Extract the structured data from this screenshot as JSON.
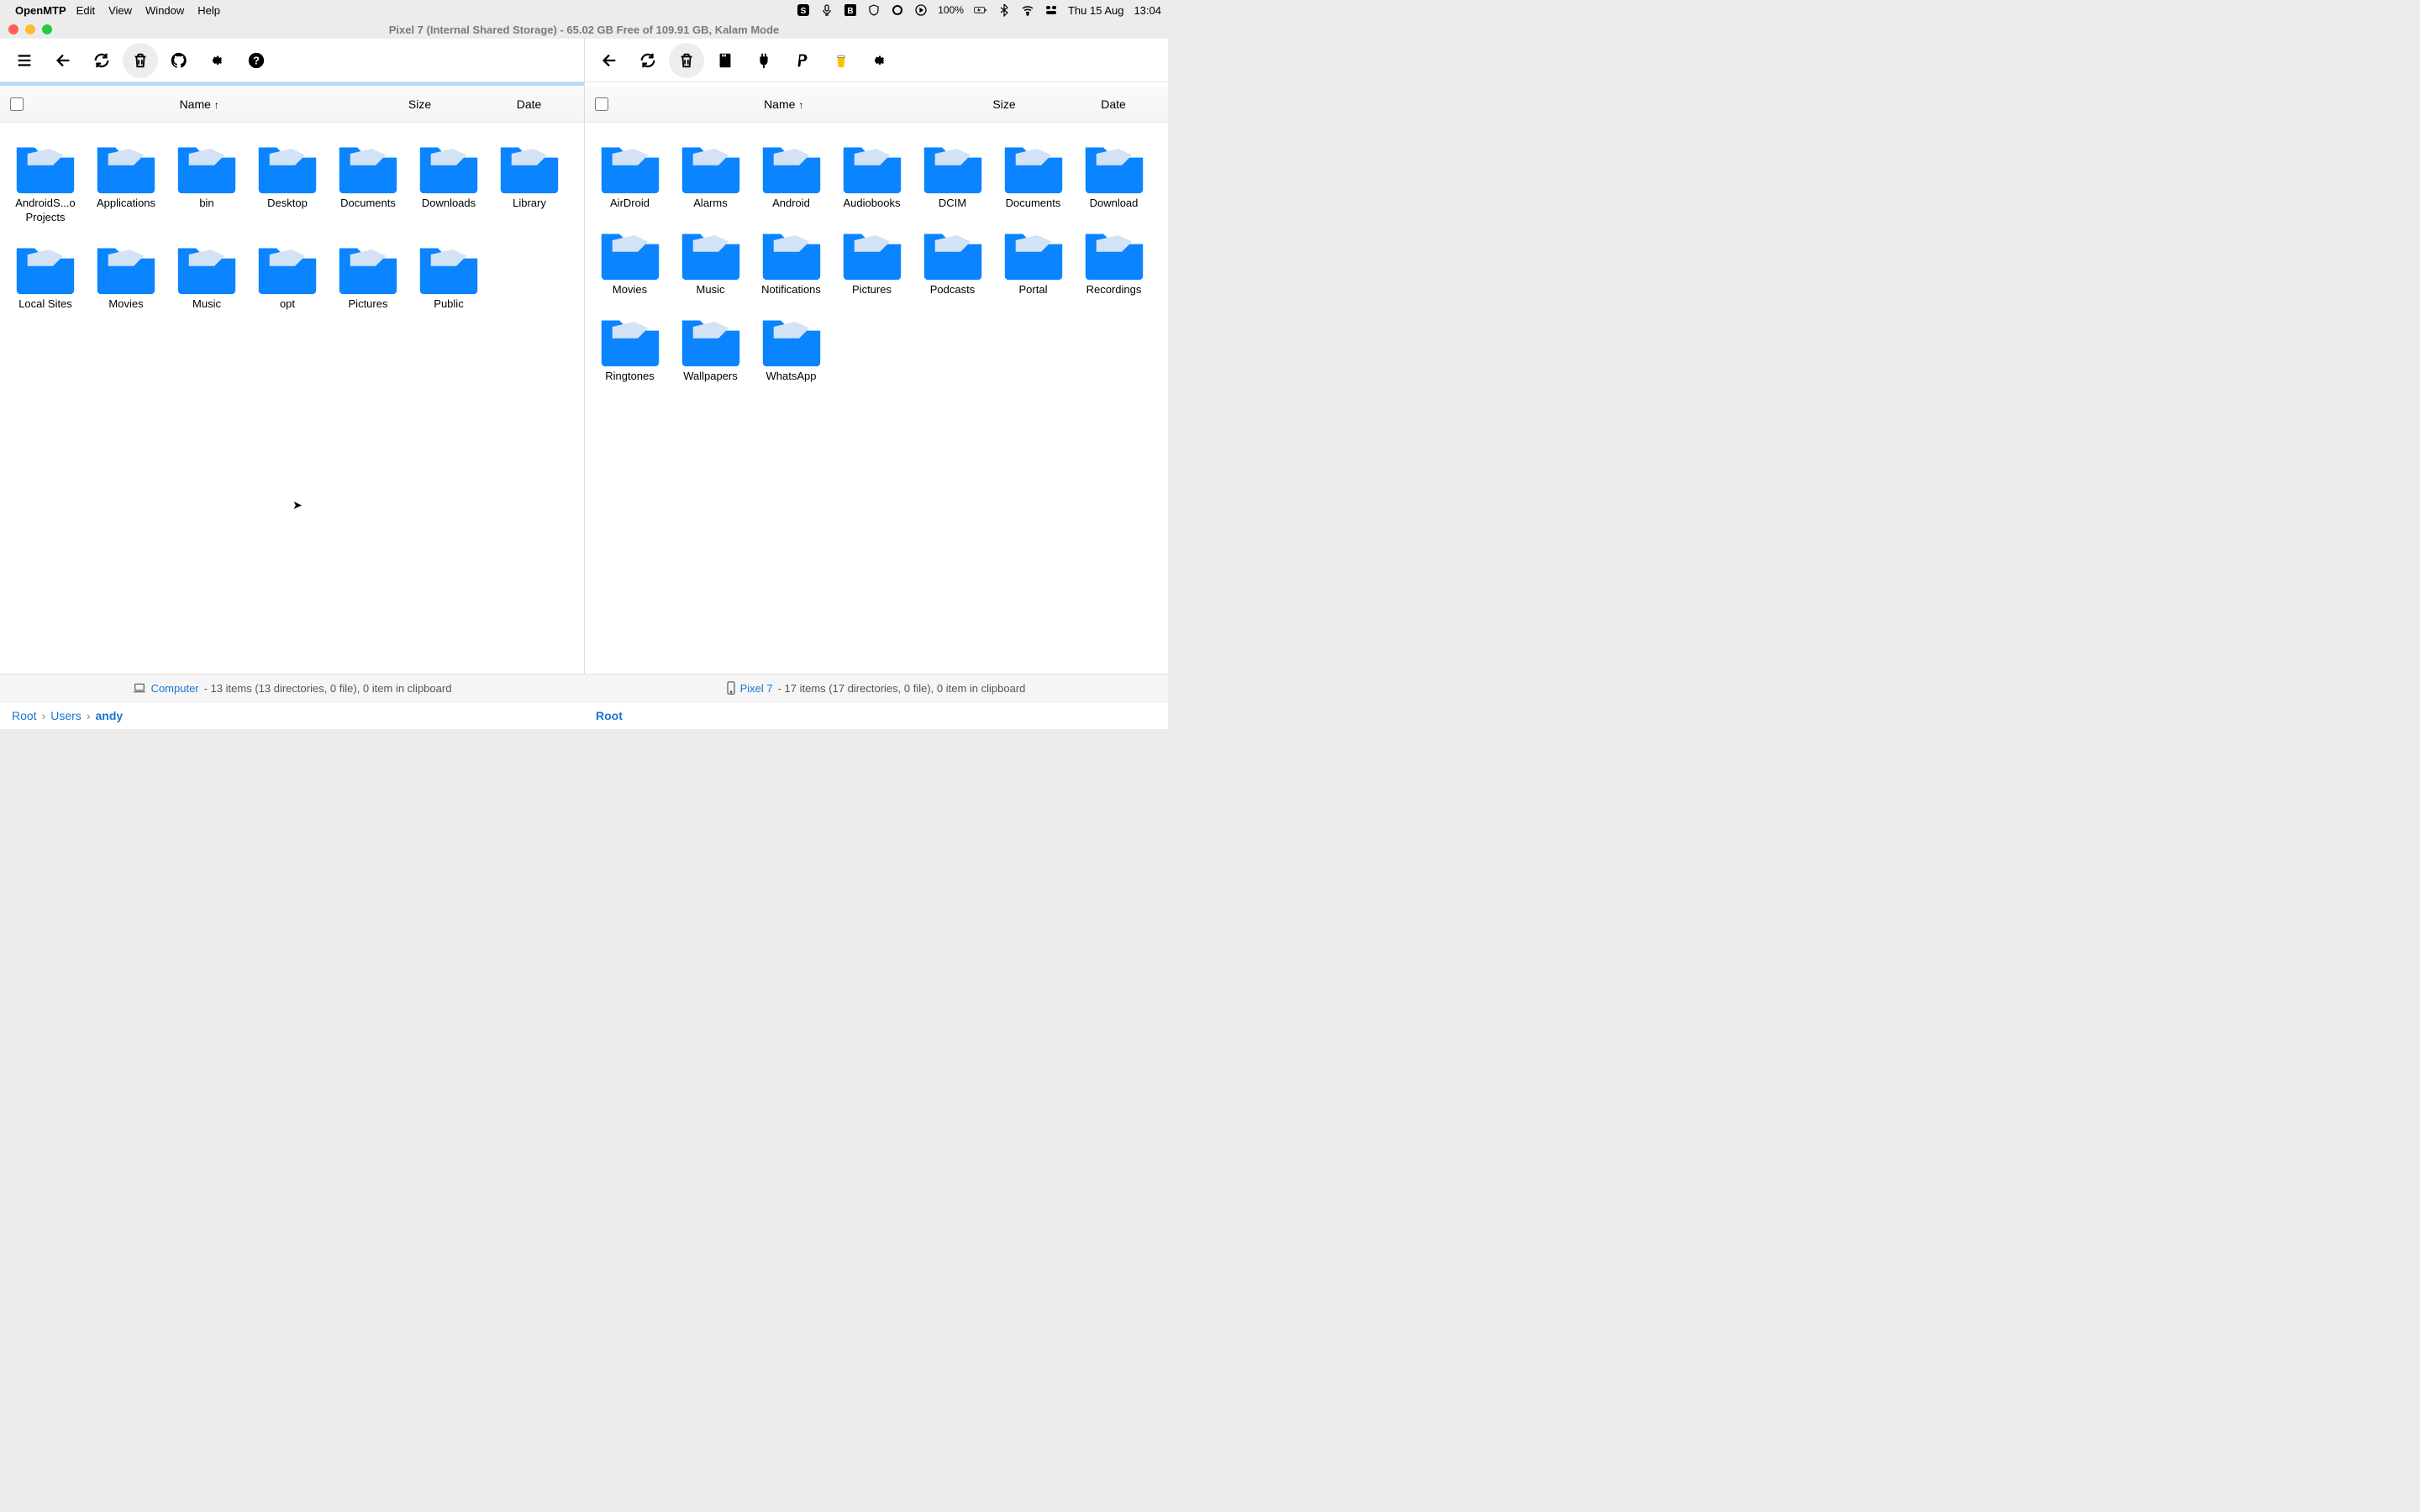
{
  "colors": {
    "accent": "#1976d2",
    "folder": "#0a84ff",
    "folder_inner": "#d3e3f5"
  },
  "menubar": {
    "app": "OpenMTP",
    "items": [
      "Edit",
      "View",
      "Window",
      "Help"
    ],
    "battery": "100%",
    "date": "Thu 15 Aug",
    "time": "13:04"
  },
  "window_title": "Pixel 7 (Internal Shared Storage) - 65.02 GB Free of 109.91 GB, Kalam Mode",
  "columns": {
    "name": "Name",
    "size": "Size",
    "date": "Date"
  },
  "left_pane": {
    "folders": [
      "AndroidS...o Projects",
      "Applications",
      "bin",
      "Desktop",
      "Documents",
      "Downloads",
      "Library",
      "Local Sites",
      "Movies",
      "Music",
      "opt",
      "Pictures",
      "Public"
    ],
    "status_location": "Computer",
    "status_text": "- 13 items (13 directories, 0 file), 0 item in clipboard",
    "breadcrumbs": [
      "Root",
      "Users",
      "andy"
    ]
  },
  "right_pane": {
    "folders": [
      "AirDroid",
      "Alarms",
      "Android",
      "Audiobooks",
      "DCIM",
      "Documents",
      "Download",
      "Movies",
      "Music",
      "Notifications",
      "Pictures",
      "Podcasts",
      "Portal",
      "Recordings",
      "Ringtones",
      "Wallpapers",
      "WhatsApp"
    ],
    "status_location": "Pixel 7",
    "status_text": "- 17 items (17 directories, 0 file), 0 item in clipboard",
    "breadcrumbs": [
      "Root"
    ]
  }
}
